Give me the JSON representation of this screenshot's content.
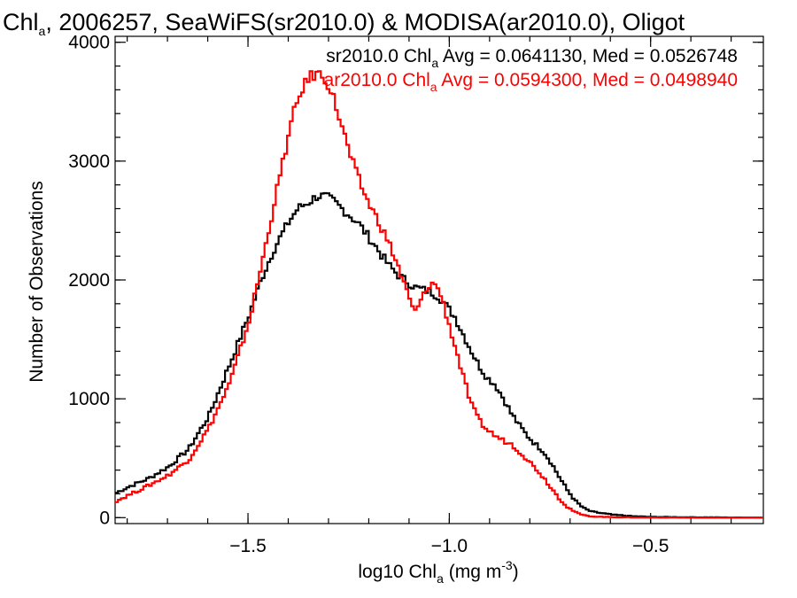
{
  "chart_data": {
    "type": "line",
    "title": {
      "prefix": "Chl",
      "sub": "a",
      "rest": ", 2006257, SeaWiFS(sr2010.0) & MODISA(ar2010.0), Oligot"
    },
    "xlabel": {
      "prefix": "log10 Chl",
      "sub": "a",
      "rest": " (mg m",
      "sup": "-3",
      "close": ")"
    },
    "ylabel": "Number of Observations",
    "xlim": [
      -1.83,
      -0.22
    ],
    "ylim": [
      -50,
      4050
    ],
    "xticks": [
      {
        "value": -1.5,
        "label": "−1.5"
      },
      {
        "value": -1.0,
        "label": "−1.0"
      },
      {
        "value": -0.5,
        "label": "−0.5"
      }
    ],
    "xminor_step": 0.1,
    "yticks": [
      {
        "value": 0,
        "label": "0"
      },
      {
        "value": 1000,
        "label": "1000"
      },
      {
        "value": 2000,
        "label": "2000"
      },
      {
        "value": 3000,
        "label": "3000"
      },
      {
        "value": 4000,
        "label": "4000"
      }
    ],
    "yminor_step": 200,
    "grid": false,
    "legend_position": "top-right",
    "series": [
      {
        "legend": {
          "prefix": "sr2010.0 Chl",
          "sub": "a",
          "rest": " Avg = 0.0641130, Med = 0.0526748"
        },
        "color": "#000000",
        "points": [
          [
            -1.83,
            210
          ],
          [
            -1.8,
            260
          ],
          [
            -1.75,
            330
          ],
          [
            -1.7,
            430
          ],
          [
            -1.65,
            580
          ],
          [
            -1.6,
            860
          ],
          [
            -1.55,
            1280
          ],
          [
            -1.5,
            1710
          ],
          [
            -1.47,
            2010
          ],
          [
            -1.44,
            2250
          ],
          [
            -1.42,
            2380
          ],
          [
            -1.4,
            2500
          ],
          [
            -1.38,
            2600
          ],
          [
            -1.35,
            2660
          ],
          [
            -1.33,
            2710
          ],
          [
            -1.31,
            2700
          ],
          [
            -1.29,
            2660
          ],
          [
            -1.27,
            2600
          ],
          [
            -1.25,
            2540
          ],
          [
            -1.23,
            2480
          ],
          [
            -1.21,
            2390
          ],
          [
            -1.19,
            2300
          ],
          [
            -1.17,
            2200
          ],
          [
            -1.15,
            2110
          ],
          [
            -1.13,
            2040
          ],
          [
            -1.11,
            1990
          ],
          [
            -1.09,
            1940
          ],
          [
            -1.07,
            1920
          ],
          [
            -1.05,
            1900
          ],
          [
            -1.03,
            1860
          ],
          [
            -1.01,
            1780
          ],
          [
            -0.99,
            1690
          ],
          [
            -0.97,
            1550
          ],
          [
            -0.95,
            1410
          ],
          [
            -0.93,
            1280
          ],
          [
            -0.91,
            1180
          ],
          [
            -0.89,
            1120
          ],
          [
            -0.87,
            1010
          ],
          [
            -0.85,
            880
          ],
          [
            -0.83,
            780
          ],
          [
            -0.81,
            690
          ],
          [
            -0.79,
            620
          ],
          [
            -0.77,
            560
          ],
          [
            -0.75,
            460
          ],
          [
            -0.73,
            340
          ],
          [
            -0.71,
            230
          ],
          [
            -0.69,
            140
          ],
          [
            -0.67,
            80
          ],
          [
            -0.65,
            50
          ],
          [
            -0.6,
            25
          ],
          [
            -0.55,
            12
          ],
          [
            -0.5,
            6
          ],
          [
            -0.4,
            3
          ],
          [
            -0.3,
            1
          ],
          [
            -0.22,
            1
          ]
        ]
      },
      {
        "legend": {
          "prefix": "ar2010.0 Chl",
          "sub": "a",
          "rest": " Avg = 0.0594300, Med = 0.0498940"
        },
        "color": "#ff0000",
        "points": [
          [
            -1.83,
            140
          ],
          [
            -1.8,
            190
          ],
          [
            -1.75,
            270
          ],
          [
            -1.7,
            360
          ],
          [
            -1.65,
            490
          ],
          [
            -1.6,
            760
          ],
          [
            -1.55,
            1120
          ],
          [
            -1.5,
            1660
          ],
          [
            -1.47,
            2120
          ],
          [
            -1.45,
            2450
          ],
          [
            -1.43,
            2780
          ],
          [
            -1.41,
            3100
          ],
          [
            -1.39,
            3400
          ],
          [
            -1.37,
            3600
          ],
          [
            -1.35,
            3710
          ],
          [
            -1.33,
            3740
          ],
          [
            -1.31,
            3690
          ],
          [
            -1.29,
            3520
          ],
          [
            -1.27,
            3290
          ],
          [
            -1.25,
            3050
          ],
          [
            -1.23,
            2860
          ],
          [
            -1.21,
            2690
          ],
          [
            -1.19,
            2560
          ],
          [
            -1.17,
            2430
          ],
          [
            -1.15,
            2280
          ],
          [
            -1.13,
            2110
          ],
          [
            -1.11,
            1910
          ],
          [
            -1.09,
            1720
          ],
          [
            -1.07,
            1850
          ],
          [
            -1.05,
            1980
          ],
          [
            -1.03,
            1930
          ],
          [
            -1.01,
            1700
          ],
          [
            -0.99,
            1450
          ],
          [
            -0.97,
            1200
          ],
          [
            -0.95,
            960
          ],
          [
            -0.93,
            820
          ],
          [
            -0.91,
            740
          ],
          [
            -0.89,
            690
          ],
          [
            -0.87,
            650
          ],
          [
            -0.85,
            620
          ],
          [
            -0.83,
            560
          ],
          [
            -0.81,
            490
          ],
          [
            -0.79,
            420
          ],
          [
            -0.77,
            340
          ],
          [
            -0.75,
            250
          ],
          [
            -0.73,
            160
          ],
          [
            -0.71,
            90
          ],
          [
            -0.69,
            45
          ],
          [
            -0.67,
            20
          ],
          [
            -0.65,
            10
          ],
          [
            -0.6,
            4
          ],
          [
            -0.55,
            2
          ],
          [
            -0.5,
            1
          ],
          [
            -0.4,
            0
          ],
          [
            -0.22,
            0
          ]
        ]
      }
    ]
  }
}
